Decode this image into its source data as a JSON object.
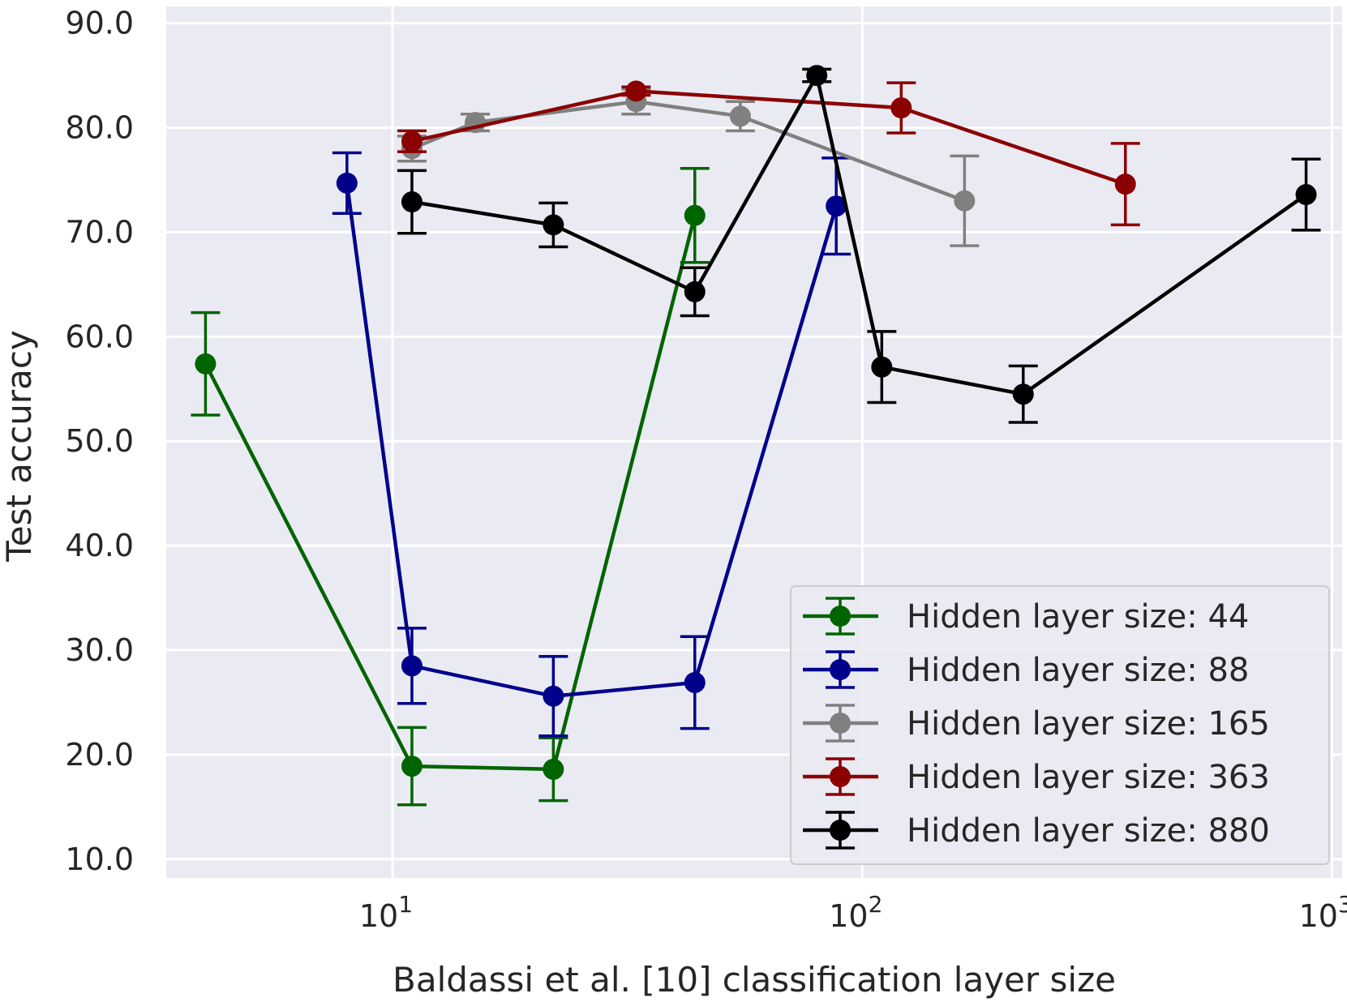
{
  "chart_data": {
    "type": "line",
    "title": "",
    "xlabel": "Baldassi et al. [10] classification layer size",
    "ylabel": "Test accuracy",
    "xscale": "log",
    "xlim": [
      3.3,
      1050
    ],
    "ylim": [
      8.2,
      91.6
    ],
    "grid": true,
    "legend_position": "lower-right",
    "x_ticks": [
      {
        "value": 10,
        "base": "10",
        "exp": "1"
      },
      {
        "value": 100,
        "base": "10",
        "exp": "2"
      },
      {
        "value": 1000,
        "base": "10",
        "exp": "3"
      }
    ],
    "y_ticks": [
      {
        "value": 10,
        "label": "10.0"
      },
      {
        "value": 20,
        "label": "20.0"
      },
      {
        "value": 30,
        "label": "30.0"
      },
      {
        "value": 40,
        "label": "40.0"
      },
      {
        "value": 50,
        "label": "50.0"
      },
      {
        "value": 60,
        "label": "60.0"
      },
      {
        "value": 70,
        "label": "70.0"
      },
      {
        "value": 80,
        "label": "80.0"
      },
      {
        "value": 90,
        "label": "90.0"
      }
    ],
    "series": [
      {
        "name": "Hidden layer size: 44",
        "color": "#006400",
        "points": [
          {
            "x": 4,
            "y": 57.4,
            "err": 4.9
          },
          {
            "x": 11,
            "y": 18.9,
            "err": 3.7
          },
          {
            "x": 22,
            "y": 18.6,
            "err": 3.0
          },
          {
            "x": 44,
            "y": 71.6,
            "err": 4.5
          }
        ]
      },
      {
        "name": "Hidden layer size: 88",
        "color": "#00008b",
        "points": [
          {
            "x": 8,
            "y": 74.7,
            "err": 2.9
          },
          {
            "x": 11,
            "y": 28.5,
            "err": 3.6
          },
          {
            "x": 22,
            "y": 25.6,
            "err": 3.8
          },
          {
            "x": 44,
            "y": 26.9,
            "err": 4.4
          },
          {
            "x": 88,
            "y": 72.5,
            "err": 4.6
          }
        ]
      },
      {
        "name": "Hidden layer size: 165",
        "color": "#808080",
        "points": [
          {
            "x": 11,
            "y": 78.0,
            "err": 1.2
          },
          {
            "x": 15,
            "y": 80.5,
            "err": 0.8
          },
          {
            "x": 33,
            "y": 82.5,
            "err": 1.2
          },
          {
            "x": 55,
            "y": 81.1,
            "err": 1.4
          },
          {
            "x": 165,
            "y": 73.0,
            "err": 4.3
          }
        ]
      },
      {
        "name": "Hidden layer size: 363",
        "color": "#8b0000",
        "points": [
          {
            "x": 11,
            "y": 78.7,
            "err": 1.0
          },
          {
            "x": 33,
            "y": 83.5,
            "err": 0.4
          },
          {
            "x": 121,
            "y": 81.9,
            "err": 2.4
          },
          {
            "x": 363,
            "y": 74.6,
            "err": 3.9
          }
        ]
      },
      {
        "name": "Hidden layer size: 880",
        "color": "#000000",
        "points": [
          {
            "x": 11,
            "y": 72.9,
            "err": 3.0
          },
          {
            "x": 22,
            "y": 70.7,
            "err": 2.1
          },
          {
            "x": 44,
            "y": 64.3,
            "err": 2.3
          },
          {
            "x": 80,
            "y": 85.0,
            "err": 0.6
          },
          {
            "x": 110,
            "y": 57.1,
            "err": 3.4
          },
          {
            "x": 220,
            "y": 54.5,
            "err": 2.7
          },
          {
            "x": 880,
            "y": 73.6,
            "err": 3.4
          }
        ]
      }
    ]
  }
}
